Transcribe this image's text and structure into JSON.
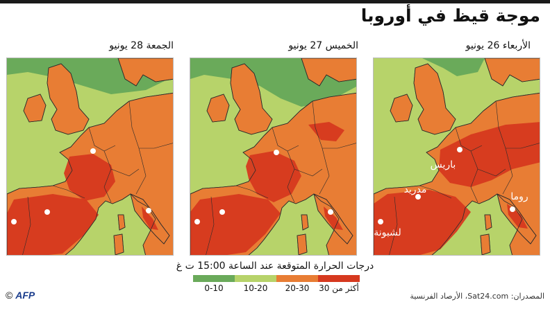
{
  "title": "موجة قيظ في أوروبا",
  "maps": [
    {
      "id": "wed",
      "label": "الأربعاء 26 يونيو",
      "cities": [
        {
          "name": "باريس",
          "show_label": true
        },
        {
          "name": "مدريد",
          "show_label": true
        },
        {
          "name": "روما",
          "show_label": true
        },
        {
          "name": "لشبونة",
          "show_label": true
        }
      ]
    },
    {
      "id": "thu",
      "label": "الخميس 27 يونيو",
      "cities": [
        {
          "name": "باريس",
          "show_label": false
        },
        {
          "name": "مدريد",
          "show_label": false
        },
        {
          "name": "روما",
          "show_label": false
        },
        {
          "name": "لشبونة",
          "show_label": false
        }
      ]
    },
    {
      "id": "fri",
      "label": "الجمعة 28 يونيو",
      "cities": [
        {
          "name": "باريس",
          "show_label": false
        },
        {
          "name": "مدريد",
          "show_label": false
        },
        {
          "name": "روما",
          "show_label": false
        },
        {
          "name": "لشبونة",
          "show_label": false
        }
      ]
    }
  ],
  "legend": {
    "title": "درجات الحرارة المتوقعة عند الساعة 15:00 ت غ",
    "items": [
      {
        "label": "0-10",
        "color": "#6aaa5a"
      },
      {
        "label": "10-20",
        "color": "#b7d36a"
      },
      {
        "label": "20-30",
        "color": "#e87d34"
      },
      {
        "label": "أكثر من 30",
        "color": "#d6391f"
      }
    ]
  },
  "sources": "المصدران: Sat24.com، الأرصاد الفرنسية",
  "credit": {
    "agency": "AFP",
    "symbol": "©"
  }
}
